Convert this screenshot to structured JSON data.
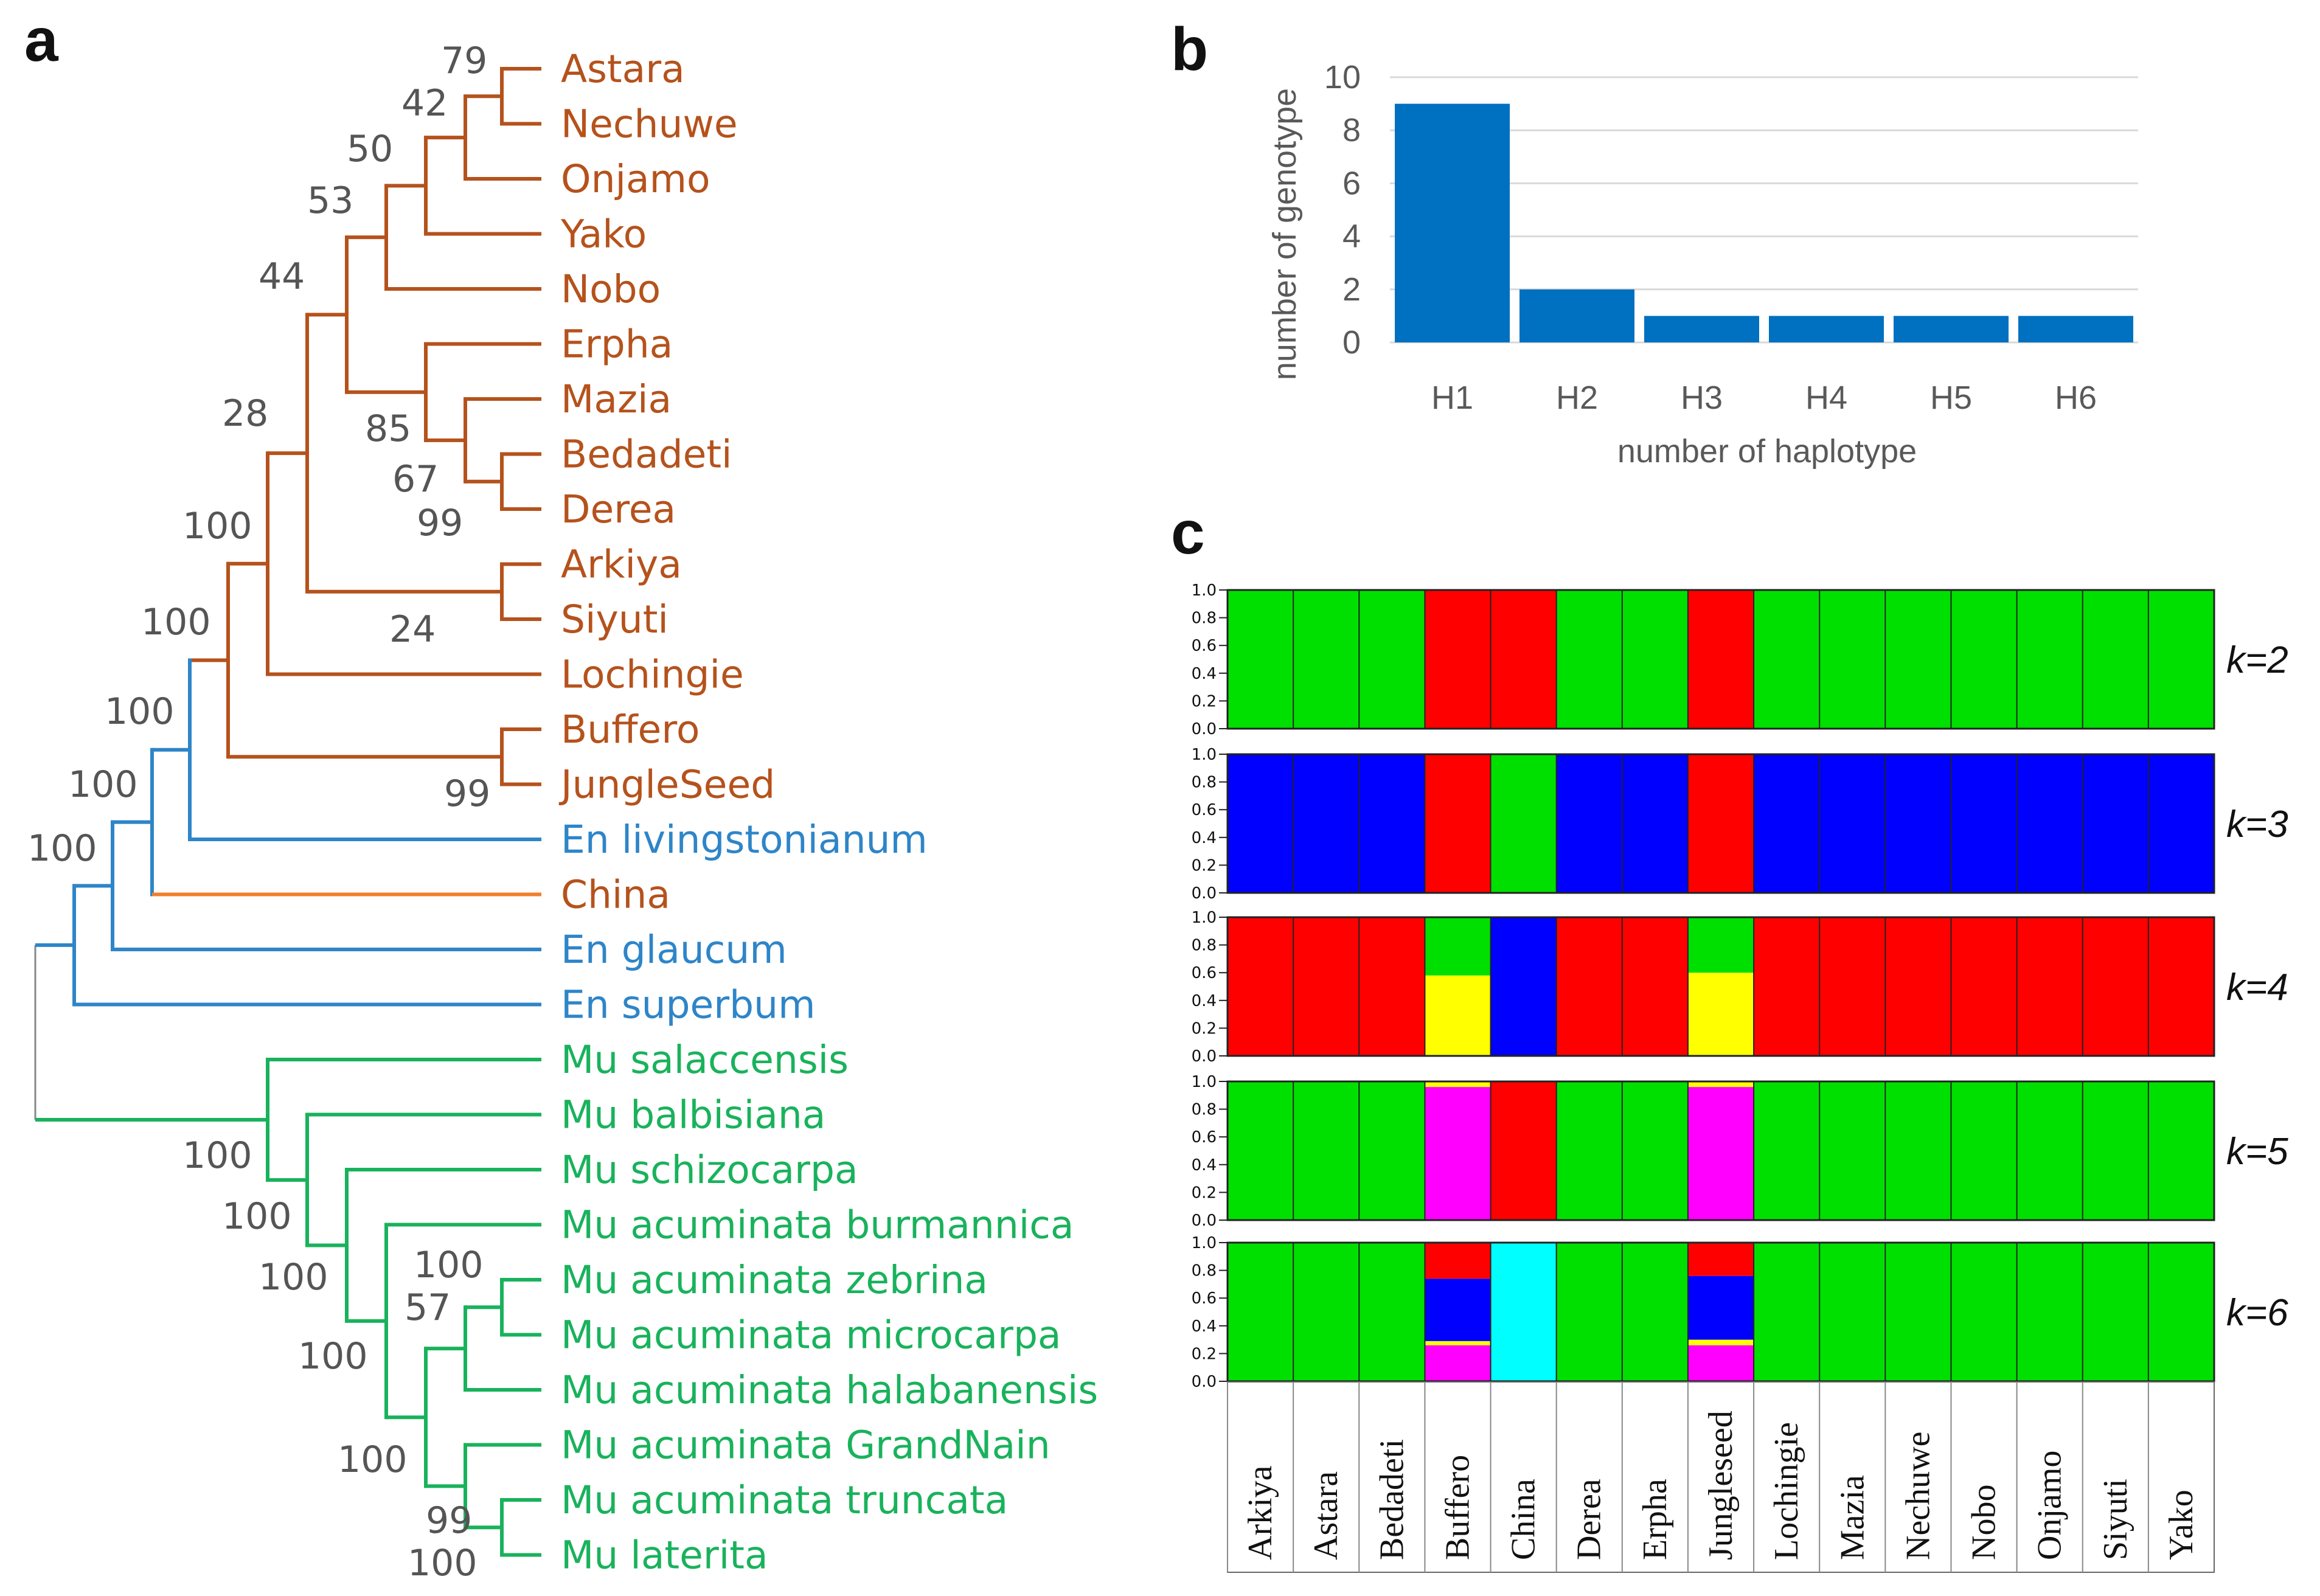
{
  "panel_labels": {
    "a": "a",
    "b": "b",
    "c": "c"
  },
  "colors": {
    "ensete_group": "#B5521C",
    "ensete_wild": "#2E85C8",
    "china": "#F07F2C",
    "musa": "#19B25C",
    "bar": "#0070C0",
    "grid": "#D9D9D9"
  },
  "tree": {
    "taxa": [
      {
        "label": "Astara",
        "group": "ensete_group"
      },
      {
        "label": "Nechuwe",
        "group": "ensete_group"
      },
      {
        "label": "Onjamo",
        "group": "ensete_group"
      },
      {
        "label": "Yako",
        "group": "ensete_group"
      },
      {
        "label": "Nobo",
        "group": "ensete_group"
      },
      {
        "label": "Erpha",
        "group": "ensete_group"
      },
      {
        "label": "Mazia",
        "group": "ensete_group"
      },
      {
        "label": "Bedadeti",
        "group": "ensete_group"
      },
      {
        "label": "Derea",
        "group": "ensete_group"
      },
      {
        "label": "Arkiya",
        "group": "ensete_group"
      },
      {
        "label": "Siyuti",
        "group": "ensete_group"
      },
      {
        "label": "Lochingie",
        "group": "ensete_group"
      },
      {
        "label": "Buffero",
        "group": "ensete_group"
      },
      {
        "label": "JungleSeed",
        "group": "ensete_group"
      },
      {
        "label": "En livingstonianum",
        "group": "ensete_wild"
      },
      {
        "label": "China",
        "group": "ensete_group"
      },
      {
        "label": "En glaucum",
        "group": "ensete_wild"
      },
      {
        "label": "En superbum",
        "group": "ensete_wild"
      },
      {
        "label": "Mu salaccensis",
        "group": "musa"
      },
      {
        "label": "Mu balbisiana",
        "group": "musa"
      },
      {
        "label": "Mu schizocarpa",
        "group": "musa"
      },
      {
        "label": "Mu acuminata burmannica",
        "group": "musa"
      },
      {
        "label": "Mu acuminata zebrina",
        "group": "musa"
      },
      {
        "label": "Mu acuminata microcarpa",
        "group": "musa"
      },
      {
        "label": "Mu acuminata halabanensis",
        "group": "musa"
      },
      {
        "label": "Mu acuminata GrandNain",
        "group": "musa"
      },
      {
        "label": "Mu acuminata truncata",
        "group": "musa"
      },
      {
        "label": "Mu laterita",
        "group": "musa"
      }
    ],
    "bootstrap": [
      "79",
      "42",
      "50",
      "53",
      "44",
      "28",
      "85",
      "67",
      "99",
      "24",
      "100",
      "100",
      "100",
      "100",
      "100",
      "99",
      "100",
      "100",
      "100",
      "100",
      "57",
      "100",
      "100",
      "99",
      "100"
    ]
  },
  "chart_data": [
    {
      "type": "bar",
      "title": "",
      "categories": [
        "H1",
        "H2",
        "H3",
        "H4",
        "H5",
        "H6"
      ],
      "values": [
        9,
        2,
        1,
        1,
        1,
        1
      ],
      "xlabel": "number of haplotype",
      "ylabel": "number of genotype",
      "ylim": [
        0,
        10
      ],
      "yticks": [
        "0",
        "2",
        "4",
        "6",
        "8",
        "10"
      ],
      "grid": true
    },
    {
      "type": "bar",
      "stacked": true,
      "title": "",
      "samples": [
        "Arkiya",
        "Astara",
        "Bedadeti",
        "Buffero",
        "China",
        "Derea",
        "Erpha",
        "Jungleseed",
        "Lochingie",
        "Mazia",
        "Nechuwe",
        "Nobo",
        "Onjamo",
        "Siyuti",
        "Yako"
      ],
      "yticks": [
        "0.0",
        "0.2",
        "0.4",
        "0.6",
        "0.8",
        "1.0"
      ],
      "ylim": [
        0,
        1
      ],
      "panels": [
        {
          "k": "k=2",
          "components": {
            "default": [
              [
                "#00E000",
                1.0
              ]
            ],
            "Buffero": [
              [
                "#FF0000",
                1.0
              ]
            ],
            "China": [
              [
                "#FF0000",
                1.0
              ]
            ],
            "Jungleseed": [
              [
                "#FF0000",
                1.0
              ]
            ]
          }
        },
        {
          "k": "k=3",
          "components": {
            "default": [
              [
                "#0000FF",
                1.0
              ]
            ],
            "Buffero": [
              [
                "#FF0000",
                1.0
              ]
            ],
            "China": [
              [
                "#00E000",
                1.0
              ]
            ],
            "Jungleseed": [
              [
                "#FF0000",
                1.0
              ]
            ]
          }
        },
        {
          "k": "k=4",
          "components": {
            "default": [
              [
                "#FF0000",
                1.0
              ]
            ],
            "Buffero": [
              [
                "#FFFF00",
                0.58
              ],
              [
                "#00E000",
                0.42
              ]
            ],
            "China": [
              [
                "#0000FF",
                1.0
              ]
            ],
            "Jungleseed": [
              [
                "#FFFF00",
                0.6
              ],
              [
                "#00E000",
                0.4
              ]
            ]
          }
        },
        {
          "k": "k=5",
          "components": {
            "default": [
              [
                "#00E000",
                1.0
              ]
            ],
            "Buffero": [
              [
                "#FF00FF",
                0.96
              ],
              [
                "#FFFF00",
                0.04
              ]
            ],
            "China": [
              [
                "#FF0000",
                1.0
              ]
            ],
            "Jungleseed": [
              [
                "#FF00FF",
                0.96
              ],
              [
                "#FFFF00",
                0.04
              ]
            ]
          }
        },
        {
          "k": "k=6",
          "components": {
            "default": [
              [
                "#00E000",
                1.0
              ]
            ],
            "Buffero": [
              [
                "#FF00FF",
                0.26
              ],
              [
                "#FFFF00",
                0.03
              ],
              [
                "#0000FF",
                0.45
              ],
              [
                "#FF0000",
                0.26
              ]
            ],
            "China": [
              [
                "#00FFFF",
                1.0
              ]
            ],
            "Jungleseed": [
              [
                "#FF00FF",
                0.26
              ],
              [
                "#FFFF00",
                0.04
              ],
              [
                "#0000FF",
                0.46
              ],
              [
                "#FF0000",
                0.24
              ]
            ]
          }
        }
      ]
    }
  ]
}
